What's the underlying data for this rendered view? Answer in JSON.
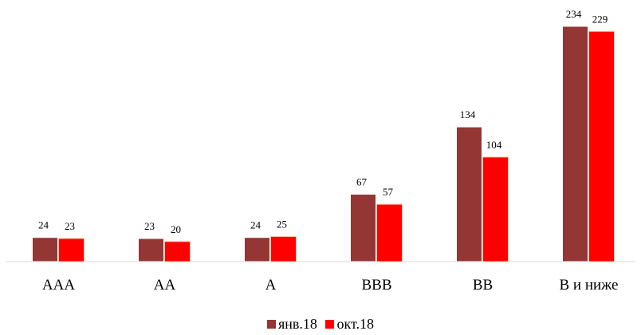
{
  "chart_data": {
    "type": "bar",
    "categories": [
      "AAA",
      "AA",
      "A",
      "BBB",
      "BB",
      "B и ниже"
    ],
    "series": [
      {
        "name": "янв.18",
        "values": [
          24,
          23,
          24,
          67,
          134,
          234
        ],
        "color": "#943634"
      },
      {
        "name": "окт.18",
        "values": [
          23,
          20,
          25,
          57,
          104,
          229
        ],
        "color": "#FF0000"
      }
    ],
    "title": "",
    "xlabel": "",
    "ylabel": "",
    "ylim": [
      0,
      240
    ],
    "grid": false,
    "legend": "bottom-center",
    "data_labels": true
  }
}
